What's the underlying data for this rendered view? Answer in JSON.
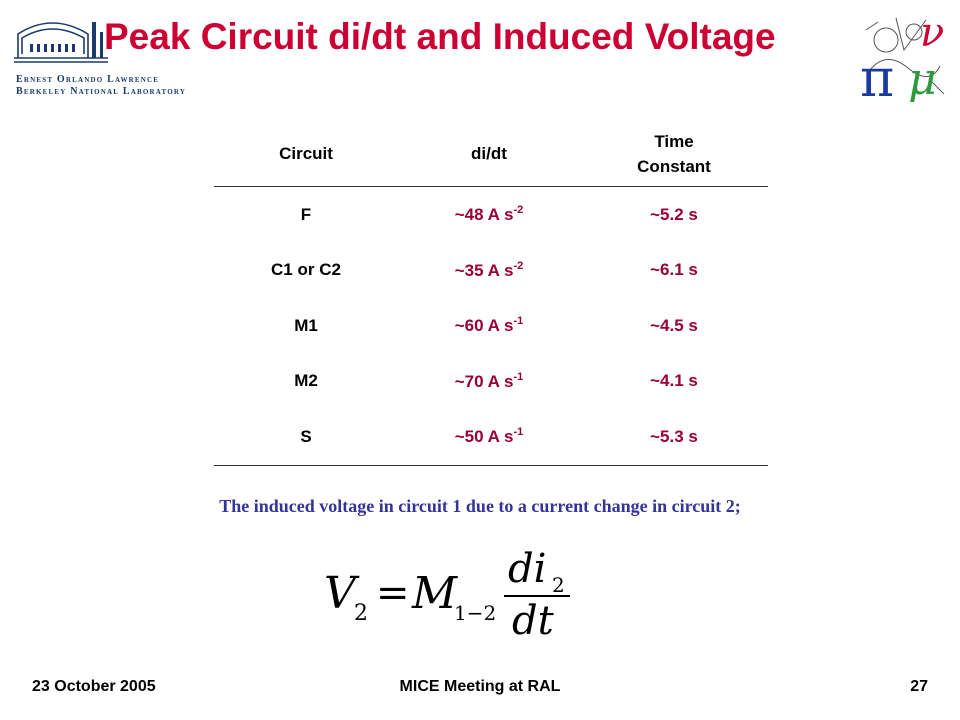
{
  "header": {
    "title": "Peak Circuit di/dt and Induced Voltage",
    "lab_logo_lines": [
      "Ernest Orlando Lawrence",
      "Berkeley National Laboratory"
    ]
  },
  "table": {
    "headers": [
      "Circuit",
      "di/dt",
      "Time Constant"
    ],
    "rows": [
      {
        "circuit": "F",
        "didt_value": "~48 A s",
        "didt_exp": "-2",
        "time_constant": "~5.2 s"
      },
      {
        "circuit": "C1 or C2",
        "didt_value": "~35 A s",
        "didt_exp": "-2",
        "time_constant": "~6.1 s"
      },
      {
        "circuit": "M1",
        "didt_value": "~60 A s",
        "didt_exp": "-1",
        "time_constant": "~4.5 s"
      },
      {
        "circuit": "M2",
        "didt_value": "~70 A s",
        "didt_exp": "-1",
        "time_constant": "~4.1 s"
      },
      {
        "circuit": "S",
        "didt_value": "~50 A s",
        "didt_exp": "-1",
        "time_constant": "~5.3 s"
      }
    ]
  },
  "note": "The induced voltage in circuit 1 due to a current change in circuit 2;",
  "formula": {
    "lhs": "V",
    "lhs_sub": "2",
    "equals": "=",
    "coef": "M",
    "coef_sub": "1−2",
    "numerator": "di",
    "numerator_sub": "2",
    "denominator": "dt"
  },
  "footer": {
    "date": "23 October 2005",
    "meeting": "MICE Meeting at RAL",
    "page": "27"
  },
  "colors": {
    "title": "#cc0033",
    "values": "#990033",
    "note": "#333399",
    "logo": "#1a3a6e"
  }
}
